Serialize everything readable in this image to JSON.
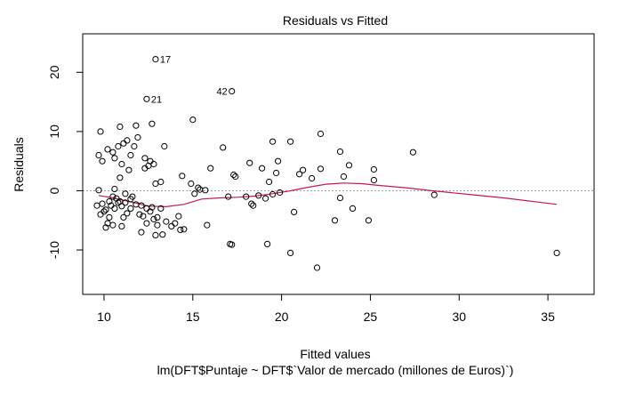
{
  "chart_data": {
    "type": "scatter",
    "title": "Residuals vs Fitted",
    "xlabel": "Fitted values",
    "ylabel": "Residuals",
    "subtitle": "lm(DFT$Puntaje ~ DFT$`Valor de mercado (millones de Euros)`)",
    "xlim": [
      8.8,
      37.6
    ],
    "ylim": [
      -17.5,
      26.5
    ],
    "xticks": [
      10,
      15,
      20,
      25,
      30,
      35
    ],
    "yticks": [
      -10,
      0,
      10,
      20
    ],
    "reference_line": 0,
    "smooth_color": "#C2185B",
    "reference_color": "#9E9E9E",
    "labeled_points": [
      {
        "label": "17",
        "x": 12.9,
        "y": 22.2
      },
      {
        "label": "21",
        "x": 12.4,
        "y": 15.5
      },
      {
        "label": "42",
        "x": 17.2,
        "y": 16.8
      }
    ],
    "smooth": {
      "x": [
        9.7,
        10.5,
        11.5,
        12.5,
        13.5,
        14.5,
        15.5,
        16.5,
        17.5,
        18.5,
        19.5,
        20.5,
        21.5,
        22.5,
        23.5,
        24.5,
        25.5,
        27.0,
        28.5,
        30.5,
        32.5,
        35.5
      ],
      "y": [
        -0.8,
        -1.2,
        -1.9,
        -2.6,
        -2.7,
        -2.3,
        -1.4,
        -1.2,
        -1.1,
        -0.9,
        -0.5,
        0.0,
        0.6,
        1.1,
        1.3,
        1.2,
        0.9,
        0.5,
        0.0,
        -0.6,
        -1.2,
        -2.3
      ]
    },
    "points": [
      [
        12.9,
        22.2
      ],
      [
        12.4,
        15.5
      ],
      [
        17.2,
        16.8
      ],
      [
        9.8,
        10.0
      ],
      [
        9.7,
        6.0
      ],
      [
        9.9,
        5.0
      ],
      [
        10.2,
        7.0
      ],
      [
        10.5,
        6.5
      ],
      [
        10.6,
        5.5
      ],
      [
        10.8,
        7.5
      ],
      [
        10.9,
        10.8
      ],
      [
        11.1,
        8.0
      ],
      [
        11.3,
        8.5
      ],
      [
        11.0,
        4.5
      ],
      [
        11.5,
        6.0
      ],
      [
        11.7,
        7.5
      ],
      [
        11.9,
        9.0
      ],
      [
        11.8,
        11.0
      ],
      [
        12.3,
        5.5
      ],
      [
        12.6,
        5.0
      ],
      [
        12.7,
        11.3
      ],
      [
        12.3,
        3.8
      ],
      [
        12.8,
        4.5
      ],
      [
        12.5,
        4.2
      ],
      [
        13.4,
        7.5
      ],
      [
        12.9,
        1.2
      ],
      [
        13.2,
        1.5
      ],
      [
        10.6,
        0.3
      ],
      [
        11.2,
        -0.5
      ],
      [
        11.6,
        -1.0
      ],
      [
        11.4,
        3.5
      ],
      [
        10.9,
        2.2
      ],
      [
        9.7,
        0.1
      ],
      [
        9.6,
        -2.5
      ],
      [
        9.8,
        -4.0
      ],
      [
        10.0,
        -3.5
      ],
      [
        10.3,
        -4.5
      ],
      [
        10.2,
        -5.5
      ],
      [
        10.4,
        -2.5
      ],
      [
        10.6,
        -3.0
      ],
      [
        10.8,
        -2.0
      ],
      [
        11.0,
        -2.6
      ],
      [
        11.1,
        -4.5
      ],
      [
        11.3,
        -3.8
      ],
      [
        11.5,
        -3.0
      ],
      [
        11.8,
        -2.3
      ],
      [
        12.0,
        -4.0
      ],
      [
        12.2,
        -4.3
      ],
      [
        12.4,
        -5.5
      ],
      [
        12.6,
        -3.5
      ],
      [
        12.8,
        -4.8
      ],
      [
        13.0,
        -5.8
      ],
      [
        13.2,
        -3.0
      ],
      [
        13.5,
        -5.2
      ],
      [
        13.8,
        -6.0
      ],
      [
        14.0,
        -5.5
      ],
      [
        14.2,
        -4.3
      ],
      [
        14.3,
        -6.6
      ],
      [
        14.5,
        -6.5
      ],
      [
        13.3,
        -7.4
      ],
      [
        12.9,
        -7.5
      ],
      [
        12.1,
        -7.0
      ],
      [
        11.0,
        -6.0
      ],
      [
        10.1,
        -6.2
      ],
      [
        10.5,
        -5.8
      ],
      [
        10.3,
        -1.8
      ],
      [
        10.5,
        -1.0
      ],
      [
        10.7,
        -1.3
      ],
      [
        10.9,
        -1.8
      ],
      [
        11.2,
        -2.0
      ],
      [
        11.5,
        -1.4
      ],
      [
        12.1,
        -2.5
      ],
      [
        12.4,
        -3.0
      ],
      [
        12.7,
        -2.8
      ],
      [
        13.0,
        -4.5
      ],
      [
        9.9,
        -2.2
      ],
      [
        10.1,
        -3.2
      ],
      [
        14.4,
        2.5
      ],
      [
        14.9,
        1.2
      ],
      [
        15.1,
        -0.5
      ],
      [
        15.4,
        0.2
      ],
      [
        15.7,
        0.1
      ],
      [
        15.3,
        0.5
      ],
      [
        15.0,
        12.0
      ],
      [
        16.0,
        3.8
      ],
      [
        15.8,
        -5.8
      ],
      [
        16.7,
        7.3
      ],
      [
        17.0,
        -1.0
      ],
      [
        17.1,
        -9.0
      ],
      [
        17.2,
        -9.1
      ],
      [
        17.4,
        2.4
      ],
      [
        17.3,
        2.7
      ],
      [
        18.0,
        -1.0
      ],
      [
        18.2,
        4.7
      ],
      [
        18.3,
        -2.2
      ],
      [
        18.4,
        -2.5
      ],
      [
        18.9,
        3.8
      ],
      [
        18.7,
        -0.8
      ],
      [
        19.1,
        -1.3
      ],
      [
        19.5,
        -0.6
      ],
      [
        19.7,
        3.0
      ],
      [
        19.3,
        1.5
      ],
      [
        19.5,
        8.3
      ],
      [
        19.8,
        5.0
      ],
      [
        19.9,
        -0.3
      ],
      [
        20.5,
        8.3
      ],
      [
        20.7,
        -3.6
      ],
      [
        21.0,
        2.8
      ],
      [
        21.2,
        3.5
      ],
      [
        21.7,
        2.1
      ],
      [
        22.2,
        9.6
      ],
      [
        22.2,
        3.7
      ],
      [
        22.0,
        -13.0
      ],
      [
        20.5,
        -10.5
      ],
      [
        19.2,
        -9.0
      ],
      [
        23.0,
        -5.0
      ],
      [
        23.3,
        6.6
      ],
      [
        23.3,
        -1.2
      ],
      [
        23.5,
        2.4
      ],
      [
        23.8,
        4.3
      ],
      [
        24.0,
        -3.0
      ],
      [
        24.9,
        -5.0
      ],
      [
        25.2,
        3.6
      ],
      [
        25.2,
        1.8
      ],
      [
        27.4,
        6.5
      ],
      [
        28.6,
        -0.7
      ],
      [
        35.5,
        -10.5
      ]
    ]
  }
}
